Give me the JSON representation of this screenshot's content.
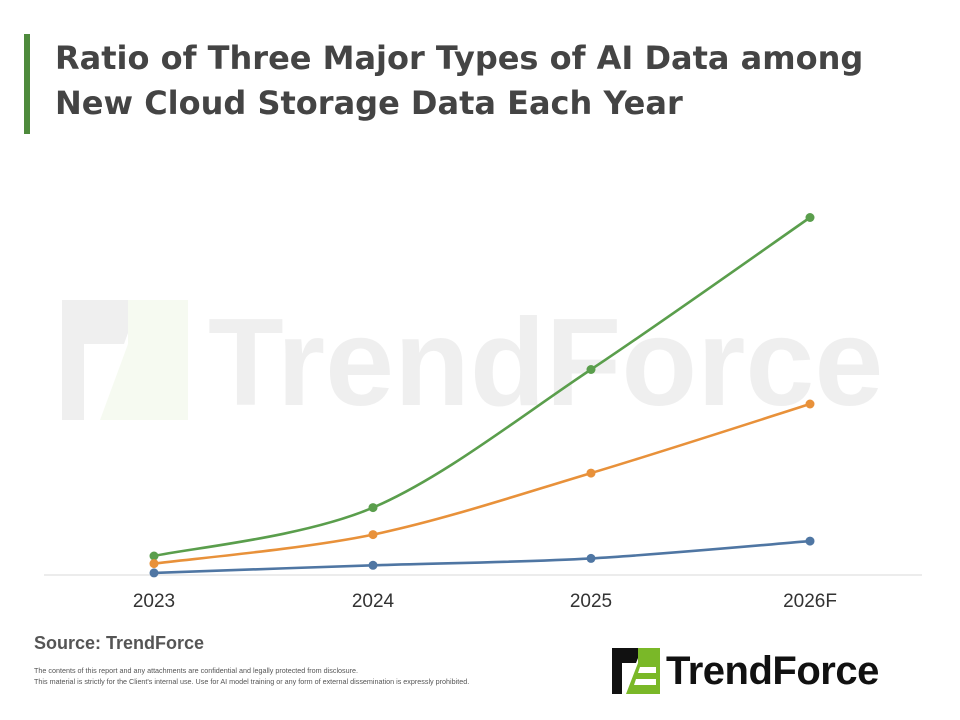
{
  "header": {
    "title_line1": "Ratio of Three Major Types of AI Data among",
    "title_line2": "New Cloud Storage Data Each Year"
  },
  "colors": {
    "accent": "#4e8a3c",
    "series_green": "#5a9e4c",
    "series_orange": "#e8913a",
    "series_blue": "#4f76a3",
    "axis": "#d9d9d9",
    "logo_green": "#7ab828"
  },
  "chart_data": {
    "type": "line",
    "categories": [
      "2023",
      "2024",
      "2025",
      "2026F"
    ],
    "series": [
      {
        "color": "#5a9e4c",
        "values": [
          5.5,
          19.5,
          59.5,
          103.5
        ]
      },
      {
        "color": "#e8913a",
        "values": [
          3.3,
          11.7,
          29.5,
          49.5
        ]
      },
      {
        "color": "#4f76a3",
        "values": [
          0.6,
          2.8,
          4.8,
          9.8
        ]
      }
    ],
    "ylim": [
      0,
      110
    ],
    "grid": false,
    "legend": "none"
  },
  "footer": {
    "source": "Source: TrendForce",
    "disclaimer_line1": "The contents of this report and any attachments are confidential and legally protected from disclosure.",
    "disclaimer_line2": "This material is strictly for the Client's internal use. Use for AI model training or any form of external dissemination is expressly prohibited."
  },
  "brand": {
    "logo_text": "TrendForce",
    "watermark_text": "TrendForce",
    "logo_icon": "trendforce-logo-icon"
  }
}
